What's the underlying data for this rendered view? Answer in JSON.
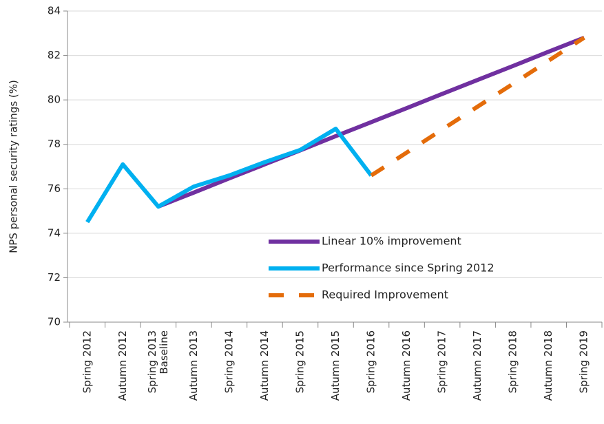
{
  "chart_data": {
    "type": "line",
    "y_label": "NPS personal security ratings  (%)",
    "categories": [
      "Spring 2012",
      "Autumn 2012",
      [
        "Spring 2013",
        "Baseline"
      ],
      "Autumn 2013",
      "Spring 2014",
      "Autumn 2014",
      "Spring 2015",
      "Autumn 2015",
      "Spring 2016",
      "Autumn 2016",
      "Spring 2017",
      "Autumn 2017",
      "Spring 2018",
      "Autumn 2018",
      "Spring 2019"
    ],
    "series": [
      {
        "name": "Linear 10% improvement",
        "color": "#7030a0",
        "dashed": false,
        "values": [
          null,
          null,
          75.2,
          75.83,
          76.47,
          77.1,
          77.73,
          78.37,
          79.0,
          79.63,
          80.27,
          80.9,
          81.53,
          82.17,
          82.8
        ]
      },
      {
        "name": "Performance since Spring 2012",
        "color": "#00b0f0",
        "dashed": false,
        "values": [
          74.5,
          77.1,
          75.2,
          76.1,
          76.6,
          77.2,
          77.75,
          78.7,
          76.6,
          null,
          null,
          null,
          null,
          null,
          null
        ]
      },
      {
        "name": "Required Improvement",
        "color": "#e46c0a",
        "dashed": true,
        "values": [
          null,
          null,
          null,
          null,
          null,
          null,
          null,
          null,
          76.6,
          77.63,
          78.67,
          79.7,
          80.73,
          81.77,
          82.8
        ]
      }
    ],
    "ylim": [
      70,
      84
    ],
    "yticks": [
      70,
      72,
      74,
      76,
      78,
      80,
      82,
      84
    ],
    "grid": true,
    "legend": "lower right"
  }
}
